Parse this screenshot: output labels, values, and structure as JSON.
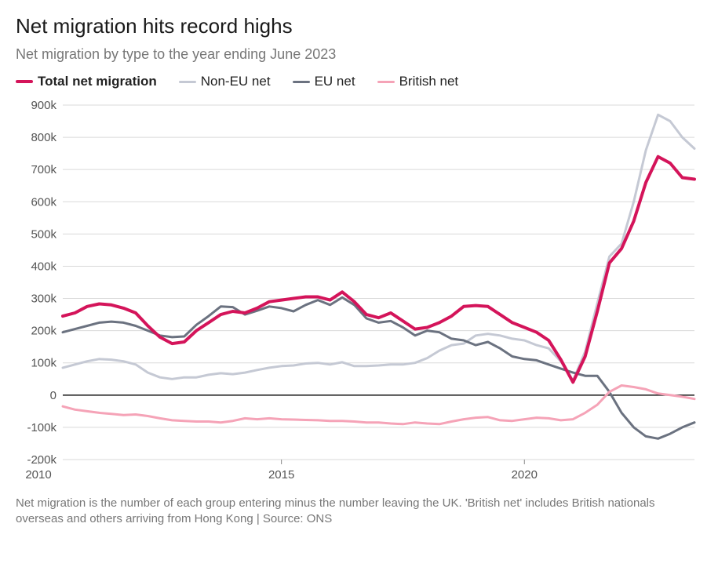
{
  "title": "Net migration hits record highs",
  "subtitle": "Net migration by type to the year ending June 2023",
  "footnote": "Net migration is the number of each group entering minus the number leaving the UK. 'British net' includes British nationals overseas and others arriving from Hong Kong  |  Source: ONS",
  "chart": {
    "type": "line",
    "background_color": "#ffffff",
    "grid_color": "#d9d9d9",
    "zero_line_color": "#1a1a1a",
    "axis_text_color": "#555555",
    "x": {
      "start": 2010.5,
      "end": 2023.5,
      "ticks": [
        2010,
        2015,
        2020
      ],
      "tick_fontsize": 15
    },
    "y": {
      "min": -200,
      "max": 900,
      "ticks": [
        -200,
        -100,
        0,
        100,
        200,
        300,
        400,
        500,
        600,
        700,
        800,
        900
      ],
      "tick_labels": [
        "-200k",
        "-100k",
        "0",
        "100k",
        "200k",
        "300k",
        "400k",
        "500k",
        "600k",
        "700k",
        "800k",
        "900k"
      ],
      "tick_fontsize": 15
    },
    "legend": {
      "items": [
        {
          "key": "total",
          "label": "Total net migration",
          "color": "#d4145a",
          "width": 4,
          "bold": true
        },
        {
          "key": "noneu",
          "label": "Non-EU net",
          "color": "#c5c9d4",
          "width": 3,
          "bold": false
        },
        {
          "key": "eu",
          "label": "EU net",
          "color": "#6b7280",
          "width": 3,
          "bold": false
        },
        {
          "key": "british",
          "label": "British net",
          "color": "#f5a3b7",
          "width": 3,
          "bold": false
        }
      ]
    },
    "series": {
      "total": {
        "color": "#d4145a",
        "width": 4,
        "points": [
          [
            2010.5,
            245
          ],
          [
            2010.75,
            255
          ],
          [
            2011,
            275
          ],
          [
            2011.25,
            283
          ],
          [
            2011.5,
            280
          ],
          [
            2011.75,
            270
          ],
          [
            2012,
            255
          ],
          [
            2012.25,
            215
          ],
          [
            2012.5,
            180
          ],
          [
            2012.75,
            160
          ],
          [
            2013,
            165
          ],
          [
            2013.25,
            200
          ],
          [
            2013.5,
            225
          ],
          [
            2013.75,
            250
          ],
          [
            2014,
            260
          ],
          [
            2014.25,
            255
          ],
          [
            2014.5,
            270
          ],
          [
            2014.75,
            290
          ],
          [
            2015,
            295
          ],
          [
            2015.25,
            300
          ],
          [
            2015.5,
            305
          ],
          [
            2015.75,
            305
          ],
          [
            2016,
            295
          ],
          [
            2016.25,
            320
          ],
          [
            2016.5,
            290
          ],
          [
            2016.75,
            250
          ],
          [
            2017,
            240
          ],
          [
            2017.25,
            255
          ],
          [
            2017.5,
            230
          ],
          [
            2017.75,
            205
          ],
          [
            2018,
            210
          ],
          [
            2018.25,
            225
          ],
          [
            2018.5,
            245
          ],
          [
            2018.75,
            275
          ],
          [
            2019,
            278
          ],
          [
            2019.25,
            275
          ],
          [
            2019.5,
            250
          ],
          [
            2019.75,
            225
          ],
          [
            2020,
            210
          ],
          [
            2020.25,
            195
          ],
          [
            2020.5,
            170
          ],
          [
            2020.75,
            110
          ],
          [
            2021,
            40
          ],
          [
            2021.25,
            120
          ],
          [
            2021.5,
            260
          ],
          [
            2021.75,
            410
          ],
          [
            2022,
            455
          ],
          [
            2022.25,
            540
          ],
          [
            2022.5,
            660
          ],
          [
            2022.75,
            740
          ],
          [
            2023,
            720
          ],
          [
            2023.25,
            675
          ],
          [
            2023.5,
            670
          ]
        ]
      },
      "noneu": {
        "color": "#c5c9d4",
        "width": 3,
        "points": [
          [
            2010.5,
            85
          ],
          [
            2010.75,
            95
          ],
          [
            2011,
            105
          ],
          [
            2011.25,
            112
          ],
          [
            2011.5,
            110
          ],
          [
            2011.75,
            105
          ],
          [
            2012,
            95
          ],
          [
            2012.25,
            70
          ],
          [
            2012.5,
            55
          ],
          [
            2012.75,
            50
          ],
          [
            2013,
            55
          ],
          [
            2013.25,
            55
          ],
          [
            2013.5,
            63
          ],
          [
            2013.75,
            68
          ],
          [
            2014,
            65
          ],
          [
            2014.25,
            70
          ],
          [
            2014.5,
            78
          ],
          [
            2014.75,
            85
          ],
          [
            2015,
            90
          ],
          [
            2015.25,
            92
          ],
          [
            2015.5,
            98
          ],
          [
            2015.75,
            100
          ],
          [
            2016,
            95
          ],
          [
            2016.25,
            102
          ],
          [
            2016.5,
            90
          ],
          [
            2016.75,
            90
          ],
          [
            2017,
            92
          ],
          [
            2017.25,
            95
          ],
          [
            2017.5,
            95
          ],
          [
            2017.75,
            100
          ],
          [
            2018,
            115
          ],
          [
            2018.25,
            138
          ],
          [
            2018.5,
            155
          ],
          [
            2018.75,
            160
          ],
          [
            2019,
            185
          ],
          [
            2019.25,
            190
          ],
          [
            2019.5,
            185
          ],
          [
            2019.75,
            175
          ],
          [
            2020,
            170
          ],
          [
            2020.25,
            155
          ],
          [
            2020.5,
            145
          ],
          [
            2020.75,
            105
          ],
          [
            2021,
            45
          ],
          [
            2021.25,
            135
          ],
          [
            2021.5,
            285
          ],
          [
            2021.75,
            430
          ],
          [
            2022,
            470
          ],
          [
            2022.25,
            600
          ],
          [
            2022.5,
            760
          ],
          [
            2022.75,
            870
          ],
          [
            2023,
            850
          ],
          [
            2023.25,
            800
          ],
          [
            2023.5,
            765
          ]
        ]
      },
      "eu": {
        "color": "#6b7280",
        "width": 3,
        "points": [
          [
            2010.5,
            195
          ],
          [
            2010.75,
            205
          ],
          [
            2011,
            215
          ],
          [
            2011.25,
            225
          ],
          [
            2011.5,
            228
          ],
          [
            2011.75,
            225
          ],
          [
            2012,
            215
          ],
          [
            2012.25,
            200
          ],
          [
            2012.5,
            185
          ],
          [
            2012.75,
            180
          ],
          [
            2013,
            182
          ],
          [
            2013.25,
            218
          ],
          [
            2013.5,
            245
          ],
          [
            2013.75,
            275
          ],
          [
            2014,
            273
          ],
          [
            2014.25,
            250
          ],
          [
            2014.5,
            262
          ],
          [
            2014.75,
            275
          ],
          [
            2015,
            270
          ],
          [
            2015.25,
            260
          ],
          [
            2015.5,
            280
          ],
          [
            2015.75,
            295
          ],
          [
            2016,
            280
          ],
          [
            2016.25,
            303
          ],
          [
            2016.5,
            280
          ],
          [
            2016.75,
            238
          ],
          [
            2017,
            225
          ],
          [
            2017.25,
            230
          ],
          [
            2017.5,
            210
          ],
          [
            2017.75,
            185
          ],
          [
            2018,
            200
          ],
          [
            2018.25,
            195
          ],
          [
            2018.5,
            175
          ],
          [
            2018.75,
            170
          ],
          [
            2019,
            155
          ],
          [
            2019.25,
            165
          ],
          [
            2019.5,
            145
          ],
          [
            2019.75,
            120
          ],
          [
            2020,
            112
          ],
          [
            2020.25,
            108
          ],
          [
            2020.5,
            95
          ],
          [
            2020.75,
            82
          ],
          [
            2021,
            70
          ],
          [
            2021.25,
            60
          ],
          [
            2021.5,
            60
          ],
          [
            2021.75,
            10
          ],
          [
            2022,
            -55
          ],
          [
            2022.25,
            -100
          ],
          [
            2022.5,
            -128
          ],
          [
            2022.75,
            -135
          ],
          [
            2023,
            -120
          ],
          [
            2023.25,
            -100
          ],
          [
            2023.5,
            -85
          ]
        ]
      },
      "british": {
        "color": "#f5a3b7",
        "width": 3,
        "points": [
          [
            2010.5,
            -35
          ],
          [
            2010.75,
            -45
          ],
          [
            2011,
            -50
          ],
          [
            2011.25,
            -55
          ],
          [
            2011.5,
            -58
          ],
          [
            2011.75,
            -62
          ],
          [
            2012,
            -60
          ],
          [
            2012.25,
            -65
          ],
          [
            2012.5,
            -72
          ],
          [
            2012.75,
            -78
          ],
          [
            2013,
            -80
          ],
          [
            2013.25,
            -82
          ],
          [
            2013.5,
            -82
          ],
          [
            2013.75,
            -85
          ],
          [
            2014,
            -80
          ],
          [
            2014.25,
            -72
          ],
          [
            2014.5,
            -75
          ],
          [
            2014.75,
            -72
          ],
          [
            2015,
            -75
          ],
          [
            2015.25,
            -76
          ],
          [
            2015.5,
            -77
          ],
          [
            2015.75,
            -78
          ],
          [
            2016,
            -80
          ],
          [
            2016.25,
            -80
          ],
          [
            2016.5,
            -82
          ],
          [
            2016.75,
            -85
          ],
          [
            2017,
            -85
          ],
          [
            2017.25,
            -88
          ],
          [
            2017.5,
            -90
          ],
          [
            2017.75,
            -85
          ],
          [
            2018,
            -88
          ],
          [
            2018.25,
            -90
          ],
          [
            2018.5,
            -82
          ],
          [
            2018.75,
            -75
          ],
          [
            2019,
            -70
          ],
          [
            2019.25,
            -68
          ],
          [
            2019.5,
            -78
          ],
          [
            2019.75,
            -80
          ],
          [
            2020,
            -75
          ],
          [
            2020.25,
            -70
          ],
          [
            2020.5,
            -72
          ],
          [
            2020.75,
            -78
          ],
          [
            2021,
            -75
          ],
          [
            2021.25,
            -55
          ],
          [
            2021.5,
            -30
          ],
          [
            2021.75,
            10
          ],
          [
            2022,
            30
          ],
          [
            2022.25,
            25
          ],
          [
            2022.5,
            18
          ],
          [
            2022.75,
            5
          ],
          [
            2023,
            0
          ],
          [
            2023.25,
            -5
          ],
          [
            2023.5,
            -12
          ]
        ]
      }
    }
  }
}
